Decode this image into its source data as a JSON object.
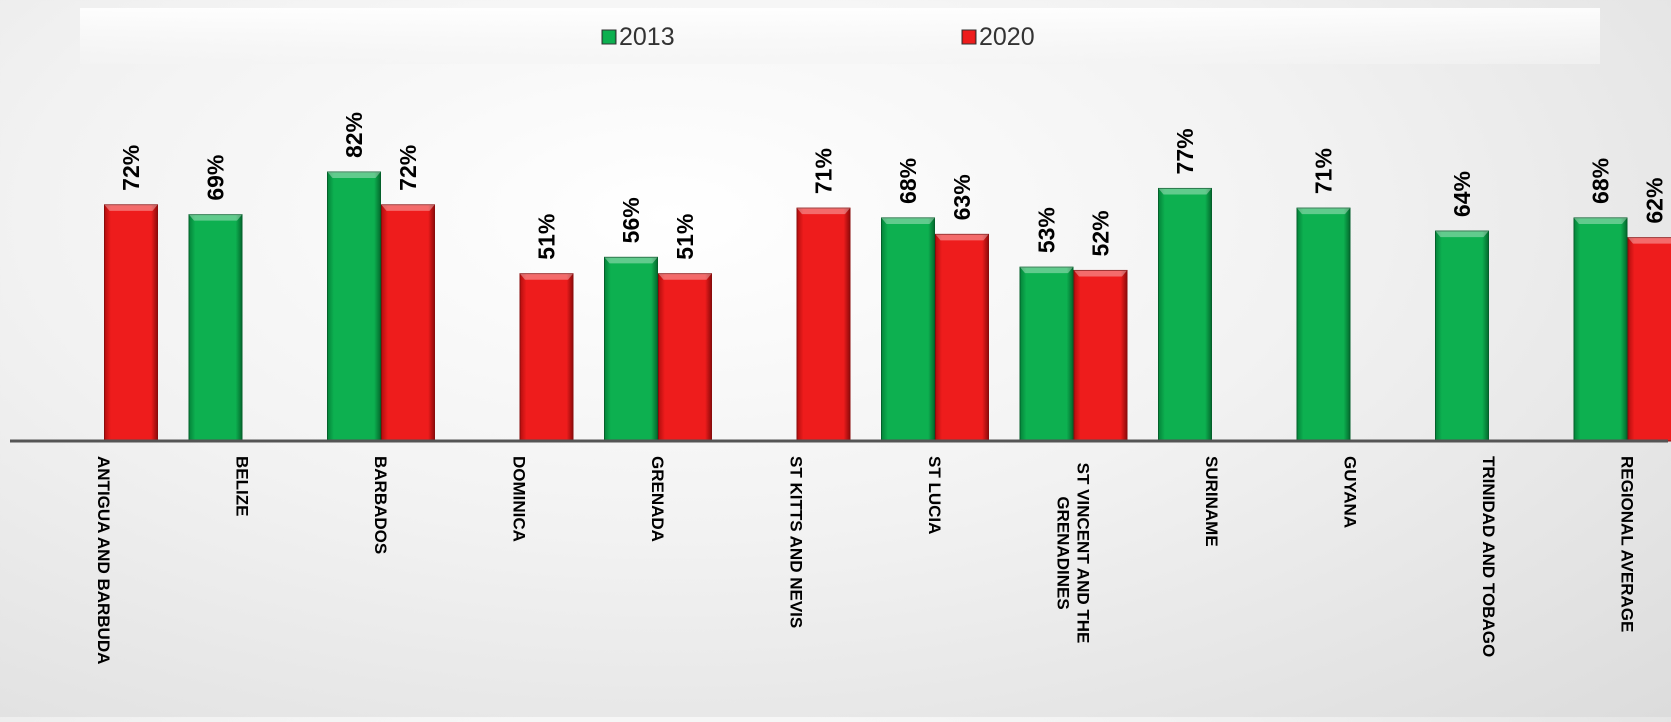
{
  "chart_data": {
    "type": "bar",
    "categories": [
      [
        "ANTIGUA AND BARBUDA"
      ],
      [
        "BELIZE"
      ],
      [
        "BARBADOS"
      ],
      [
        "DOMINICA"
      ],
      [
        "GRENADA"
      ],
      [
        "ST KITTS AND NEVIS"
      ],
      [
        "ST LUCIA"
      ],
      [
        "ST VINCENT AND THE",
        "GRENADINES"
      ],
      [
        "SURINAME"
      ],
      [
        "GUYANA"
      ],
      [
        "TRINIDAD AND TOBAGO"
      ],
      [
        "REGIONAL AVERAGE"
      ]
    ],
    "series": [
      {
        "name": "2013",
        "color": "#0db050",
        "values": [
          null,
          69,
          82,
          null,
          56,
          null,
          68,
          53,
          77,
          71,
          64,
          68
        ],
        "labels": [
          null,
          "69%",
          "82%",
          null,
          "56%",
          null,
          "68%",
          "53%",
          "77%",
          "71%",
          "64%",
          "68%"
        ]
      },
      {
        "name": "2020",
        "color": "#ee1c1c",
        "values": [
          72,
          null,
          72,
          51,
          51,
          71,
          63,
          52,
          null,
          null,
          null,
          62
        ],
        "labels": [
          "72%",
          null,
          "72%",
          "51%",
          "51%",
          "71%",
          "63%",
          "52%",
          null,
          null,
          null,
          "62%"
        ]
      }
    ],
    "ylim": [
      0,
      100
    ],
    "grid": false,
    "legend_position": "top"
  }
}
